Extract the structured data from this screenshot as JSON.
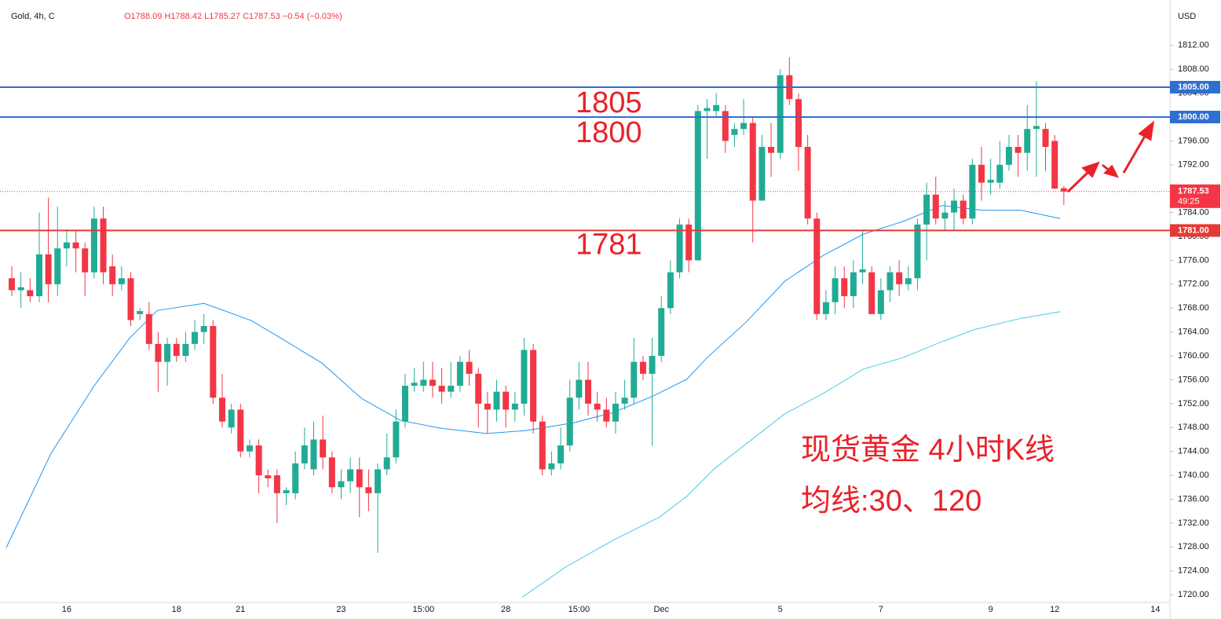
{
  "chart_data": {
    "type": "candlestick",
    "title": "Gold, 4h, C",
    "ohlc_text": "O1788.09 H1788.42 L1785.27 C1787.53 −0.54 (−0.03%)",
    "currency": "USD",
    "up_color": "#22ab94",
    "down_color": "#f23645",
    "categories": [
      null,
      null,
      null,
      null,
      null,
      null,
      "16",
      null,
      null,
      null,
      null,
      null,
      null,
      null,
      null,
      null,
      null,
      null,
      "18",
      null,
      null,
      null,
      null,
      null,
      null,
      "21",
      null,
      null,
      null,
      null,
      null,
      null,
      null,
      null,
      null,
      null,
      "23",
      null,
      null,
      null,
      null,
      null,
      null,
      null,
      null,
      "15:00",
      null,
      null,
      null,
      null,
      null,
      null,
      null,
      null,
      "28",
      null,
      null,
      null,
      null,
      null,
      null,
      null,
      "15:00",
      null,
      null,
      null,
      null,
      null,
      null,
      null,
      null,
      "Dec",
      null,
      null,
      null,
      null,
      null,
      null,
      null,
      null,
      null,
      null,
      null,
      null,
      "5",
      null,
      null,
      null,
      null,
      null,
      null,
      null,
      null,
      null,
      null,
      "7",
      null,
      null,
      null,
      null,
      null,
      null,
      null,
      null,
      null,
      null,
      null,
      "9",
      null,
      null,
      null,
      null,
      null,
      null,
      "12",
      null,
      null,
      null,
      null,
      null,
      null,
      null,
      null,
      null,
      null,
      "14"
    ],
    "open": [
      1773,
      1771,
      1771,
      1770,
      1777,
      1772,
      1778,
      1779,
      1778,
      1774,
      1783,
      1775,
      1772,
      1773,
      1767,
      1767,
      1762,
      1759,
      1762,
      1760,
      1762,
      1764,
      1765,
      1753,
      1748,
      1751,
      1744,
      1745,
      1740,
      1740,
      1737,
      1737,
      1742,
      1741,
      1746,
      1743,
      1738,
      1739,
      1741,
      1738,
      1737,
      1741,
      1743,
      1749,
      1755,
      1755,
      1756,
      1755,
      1754,
      1755,
      1759,
      1757,
      1752,
      1751,
      1754,
      1751,
      1752,
      1761,
      1749,
      1741,
      1742,
      1745,
      1753,
      1756,
      1752,
      1751,
      1749,
      1752,
      1753,
      1759,
      1757,
      1760,
      1768,
      1774,
      1782,
      1776,
      1801,
      1801,
      1801,
      1797,
      1798,
      1799,
      1786,
      1795,
      1794,
      1807,
      1803,
      1795,
      1783,
      1767,
      1769,
      1773,
      1770,
      1774,
      1774,
      1767,
      1771,
      1774,
      1772,
      1773,
      1782,
      1787,
      1783,
      1784,
      1786,
      1783,
      1792,
      1789,
      1789,
      1792,
      1795,
      1794,
      1798,
      1798,
      1796,
      1788.09,
      null,
      null,
      null,
      null,
      null,
      null,
      null,
      null,
      null,
      null
    ],
    "high": [
      1775,
      1774,
      1773,
      1784,
      1786.5,
      1785,
      1781,
      1781,
      1779,
      1785,
      1785,
      1777,
      1775,
      1774,
      1768,
      1769,
      1764,
      1763,
      1763,
      1764,
      1766,
      1767,
      1766,
      1757,
      1752,
      1752,
      1746,
      1746,
      1741,
      1741,
      1738,
      1744,
      1748,
      1749,
      1750,
      1744,
      1741,
      1743,
      1743,
      1741,
      1742,
      1747,
      1751,
      1757,
      1758,
      1759,
      1759,
      1758,
      1759,
      1760,
      1761,
      1758,
      1754,
      1756,
      1755,
      1754,
      1763,
      1762,
      1750,
      1744,
      1748,
      1756,
      1759,
      1759,
      1754,
      1753,
      1754,
      1756,
      1763,
      1760,
      1763,
      1770,
      1776,
      1783,
      1783,
      1802,
      1803,
      1804,
      1802,
      1799,
      1803,
      1800,
      1797,
      1799,
      1808,
      1810,
      1804,
      1797,
      1784,
      1771,
      1775,
      1775,
      1776,
      1781,
      1775,
      1773,
      1775,
      1776,
      1775,
      1783,
      1789,
      1790,
      1786,
      1788,
      1787,
      1793,
      1795,
      1793,
      1796,
      1797,
      1797,
      1802,
      1806,
      1799,
      1797,
      1788.42,
      null,
      null,
      null,
      null,
      null,
      null,
      null,
      null,
      null,
      null
    ],
    "low": [
      1770,
      1768,
      1769,
      1769,
      1769,
      1770,
      1775,
      1774,
      1770,
      1773,
      1772,
      1770,
      1771,
      1765,
      1766,
      1761,
      1754,
      1755,
      1759,
      1759,
      1761,
      1762,
      1752,
      1748,
      1747,
      1743,
      1743,
      1737,
      1738,
      1732,
      1735,
      1736,
      1741,
      1740,
      1741,
      1737,
      1736,
      1737,
      1733,
      1734,
      1727,
      1740,
      1742,
      1748,
      1754,
      1754,
      1753,
      1752,
      1753,
      1754,
      1755,
      1748,
      1747,
      1749,
      1748,
      1749,
      1750,
      1747,
      1740,
      1740,
      1741,
      1744,
      1751,
      1750,
      1749,
      1748,
      1747,
      1751,
      1752,
      1756,
      1745,
      1759,
      1767,
      1773,
      1774,
      1776,
      1793,
      1800,
      1794,
      1795,
      1797,
      1779,
      1786,
      1790,
      1793,
      1802,
      1791,
      1782,
      1766,
      1766,
      1767,
      1768,
      1768,
      1772,
      1767,
      1766,
      1769,
      1770,
      1771,
      1771,
      1776,
      1782,
      1781,
      1781,
      1782,
      1782,
      1786,
      1787,
      1788,
      1791,
      1790,
      1791,
      1790,
      1791,
      1788,
      1785.27,
      null,
      null,
      null,
      null,
      null,
      null,
      null,
      null,
      null,
      null
    ],
    "close": [
      1771,
      1771.5,
      1770,
      1777,
      1772,
      1778,
      1779,
      1778,
      1774,
      1783,
      1774,
      1772,
      1773,
      1766,
      1767.5,
      1762,
      1759,
      1762,
      1760,
      1762,
      1764,
      1765,
      1753,
      1749,
      1751,
      1744,
      1745,
      1740,
      1739.5,
      1737,
      1737.5,
      1742,
      1745,
      1746,
      1743,
      1738,
      1739,
      1741,
      1738,
      1737,
      1741,
      1743,
      1749,
      1755,
      1755.5,
      1756,
      1755,
      1754,
      1755,
      1759,
      1757,
      1752,
      1751,
      1754,
      1751,
      1752,
      1761,
      1749,
      1741,
      1742,
      1745,
      1753,
      1756,
      1752,
      1751,
      1749,
      1752,
      1753,
      1759,
      1757,
      1760,
      1768,
      1774,
      1782,
      1776,
      1801,
      1801.5,
      1802,
      1796,
      1798,
      1799,
      1786,
      1795,
      1794,
      1807,
      1803,
      1795,
      1783,
      1767,
      1769,
      1773,
      1770,
      1774,
      1774.5,
      1767,
      1771,
      1774,
      1772,
      1773,
      1782,
      1787,
      1783,
      1784,
      1786,
      1783,
      1792,
      1789,
      1789.5,
      1792,
      1795,
      1794,
      1798,
      1798.5,
      1795,
      1788,
      1787.53,
      null,
      null,
      null,
      null,
      null,
      null,
      null,
      null,
      null,
      null
    ],
    "moving_averages": [
      {
        "color": "#2196f3",
        "x": [
          -0.6,
          4.3,
          9.0,
          12.9,
          15.9,
          21.0,
          26.2,
          29.6,
          33.9,
          38.2,
          42.5,
          46.8,
          51.9,
          56.2,
          61.4,
          65.7,
          70.0,
          73.8,
          76.0,
          80.3,
          84.5,
          88.8,
          93.1,
          97.4,
          101.7,
          106.0,
          110.3,
          114.6
        ],
        "values": [
          1727.9,
          1743.7,
          1755,
          1763,
          1767.6,
          1768.8,
          1765.9,
          1762.8,
          1758.8,
          1752.9,
          1749.2,
          1747.9,
          1747,
          1747.5,
          1748.8,
          1750.5,
          1753.2,
          1756.1,
          1759.7,
          1765.7,
          1772.5,
          1776.9,
          1780.4,
          1782.5,
          1785.2,
          1784.4,
          1784.4,
          1783
        ]
      },
      {
        "color": "#4dc9e6",
        "x": [
          55.8,
          60.5,
          65.7,
          70.8,
          73.8,
          76.8,
          80.3,
          84.5,
          88.8,
          93.1,
          97.4,
          101.7,
          105.2,
          110.3,
          114.6
        ],
        "values": [
          1719.6,
          1724.6,
          1729.1,
          1733,
          1736.5,
          1741.1,
          1745.3,
          1750.3,
          1753.8,
          1757.8,
          1759.7,
          1762.4,
          1764.4,
          1766.3,
          1767.4
        ]
      }
    ],
    "levels": [
      {
        "value": 1805,
        "label": "1805.00",
        "color": "#2f6fd0",
        "annotation": "1805"
      },
      {
        "value": 1800,
        "label": "1800.00",
        "color": "#2f6fd0",
        "annotation": "1800"
      },
      {
        "value": 1781,
        "label": "1781.00",
        "color": "#e53935",
        "annotation": "1781"
      }
    ],
    "last_price_label": "1787.53",
    "countdown": "49:25",
    "annotations": [
      "现货黄金 4小时K线",
      "均线:30、120"
    ],
    "xlim": [
      -1.29,
      126.6
    ],
    "ylim": [
      1718.7,
      1819.6
    ],
    "yticks": [
      {
        "value": 1720,
        "label": "1720.00"
      },
      {
        "value": 1724,
        "label": "1724.00"
      },
      {
        "value": 1728,
        "label": "1728.00"
      },
      {
        "value": 1732,
        "label": "1732.00"
      },
      {
        "value": 1736,
        "label": "1736.00"
      },
      {
        "value": 1740,
        "label": "1740.00"
      },
      {
        "value": 1744,
        "label": "1744.00"
      },
      {
        "value": 1748,
        "label": "1748.00"
      },
      {
        "value": 1752,
        "label": "1752.00"
      },
      {
        "value": 1756,
        "label": "1756.00"
      },
      {
        "value": 1760,
        "label": "1760.00"
      },
      {
        "value": 1764,
        "label": "1764.00"
      },
      {
        "value": 1768,
        "label": "1768.00"
      },
      {
        "value": 1772,
        "label": "1772.00"
      },
      {
        "value": 1776,
        "label": "1776.00"
      },
      {
        "value": 1780,
        "label": "1780.00"
      },
      {
        "value": 1784,
        "label": "1784.00"
      },
      {
        "value": 1788,
        "label": "1788.00"
      },
      {
        "value": 1792,
        "label": "1792.00"
      },
      {
        "value": 1796,
        "label": "1796.00"
      },
      {
        "value": 1800,
        "label": "1800.00"
      },
      {
        "value": 1804,
        "label": "1804.00"
      },
      {
        "value": 1808,
        "label": "1808.00"
      },
      {
        "value": 1812,
        "label": "1812.00"
      }
    ],
    "grid": false
  }
}
